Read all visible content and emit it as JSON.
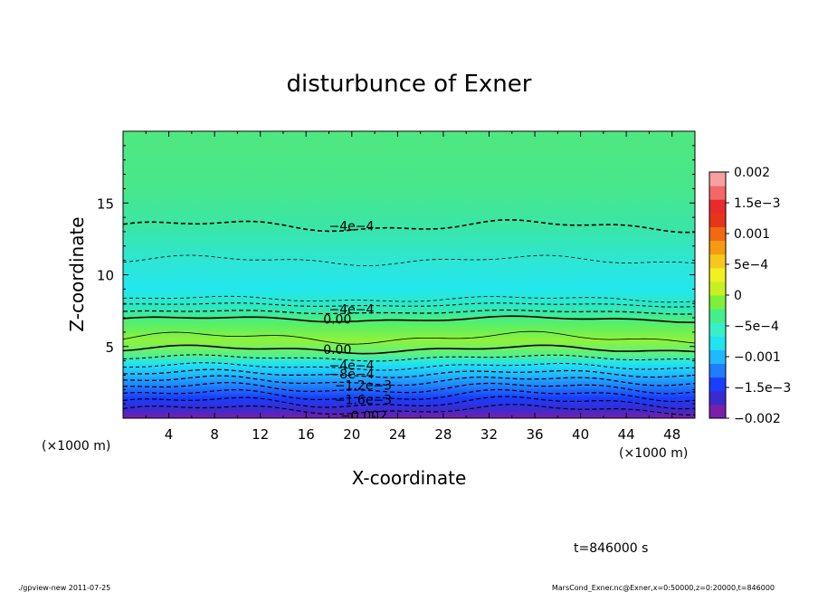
{
  "chart_data": {
    "type": "heatmap",
    "title": "disturbunce of Exner",
    "xlabel": "X-coordinate",
    "ylabel": "Z-coordinate",
    "x_unit": "(×1000 m)",
    "y_unit": "(×1000 m)",
    "xlim": [
      0,
      50
    ],
    "ylim": [
      0,
      20
    ],
    "x_ticks": [
      "4",
      "8",
      "12",
      "16",
      "20",
      "24",
      "28",
      "32",
      "36",
      "40",
      "44",
      "48"
    ],
    "y_ticks": [
      "5",
      "10",
      "15"
    ],
    "colorbar": {
      "min": -0.002,
      "max": 0.002,
      "tick_labels": [
        "0.002",
        "1.5e−3",
        "0.001",
        "5e−4",
        "0",
        "−5e−4",
        "−0.001",
        "−1.5e−3",
        "−0.002"
      ]
    },
    "contour_labels": [
      "−4e−4",
      "−4e−4",
      "0.00",
      "0.00",
      "−4e−4",
      "−8e−4",
      "−1.2e−3",
      "−1.6e−3",
      "−0.002"
    ],
    "contour_levels": [
      -0.002,
      -0.0016,
      -0.0012,
      -0.0008,
      -0.0004,
      0.0,
      -0.0004
    ],
    "time_label": "t=846000 s",
    "footer_left": "./gpview-new  2011-07-25",
    "footer_right": "MarsCond_Exner.nc@Exner,x=0:50000,z=0:20000,t=846000"
  }
}
